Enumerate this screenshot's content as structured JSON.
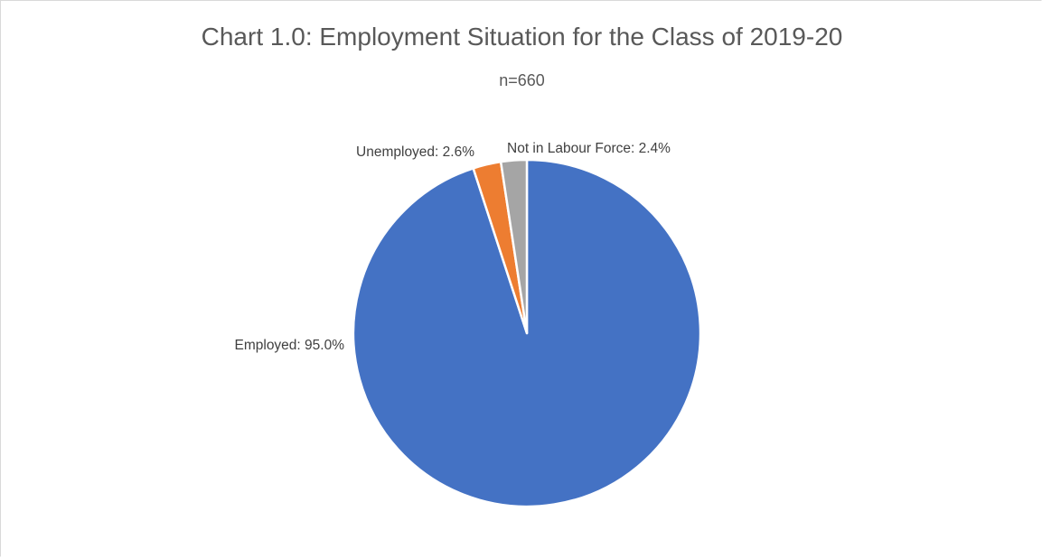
{
  "chart_data": {
    "type": "pie",
    "title": "Chart 1.0: Employment Situation for the Class of 2019-20",
    "subtitle": "n=660",
    "start_angle_deg": 0,
    "direction": "clockwise",
    "slices": [
      {
        "label": "Employed: 95.0%",
        "category": "Employed",
        "value": 95.0,
        "color": "#4472C4"
      },
      {
        "label": "Unemployed: 2.6%",
        "category": "Unemployed",
        "value": 2.6,
        "color": "#ED7D31"
      },
      {
        "label": "Not in Labour Force: 2.4%",
        "category": "Not in Labour Force",
        "value": 2.4,
        "color": "#A5A5A5"
      }
    ],
    "legend": "none"
  }
}
